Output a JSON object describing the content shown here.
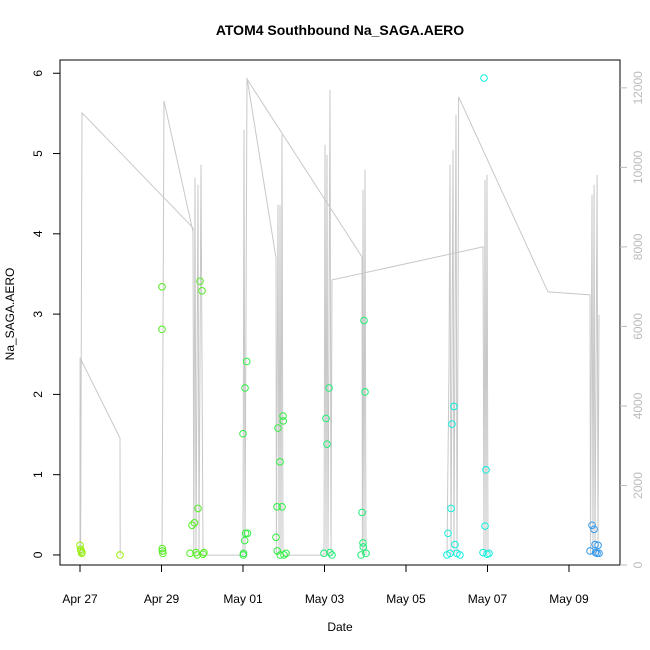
{
  "chart_data": {
    "type": "scatter",
    "title": "ATOM4 Southbound Na_SAGA.AERO",
    "x_label": "Date",
    "y_label": "Na_SAGA.AERO",
    "xlim": [
      "04-26T12:13",
      "05-10T06:03"
    ],
    "xticks": [
      {
        "value": "04-27T00:00",
        "label": "Apr 27"
      },
      {
        "value": "04-29T00:00",
        "label": "Apr 29"
      },
      {
        "value": "05-01T00:00",
        "label": "May 01"
      },
      {
        "value": "05-03T00:00",
        "label": "May 03"
      },
      {
        "value": "05-05T00:00",
        "label": "May 05"
      },
      {
        "value": "05-07T00:00",
        "label": "May 07"
      },
      {
        "value": "05-09T00:00",
        "label": "May 09"
      }
    ],
    "ylim": [
      -0.125,
      6.165
    ],
    "yticks": [
      0,
      1,
      2,
      3,
      4,
      5,
      6
    ],
    "y2lim": [
      0,
      12700
    ],
    "y2ticks": [
      0,
      2000,
      4000,
      6000,
      8000,
      10000,
      12000
    ],
    "series": [
      {
        "color": "#99ee11",
        "x": [
          "04-27T00:00",
          "04-27T00:20",
          "04-27T00:40",
          "04-27T01:00",
          "04-27T01:10",
          "04-27T23:33"
        ],
        "values": [
          0.12,
          0.07,
          0.05,
          0.02,
          0.03,
          0.0
        ]
      },
      {
        "color": "#55ee22",
        "x": [
          "04-29T00:18",
          "04-29T00:18",
          "04-29T00:25",
          "04-29T00:35",
          "04-29T00:50",
          "04-29T16:50",
          "04-29T18:00",
          "04-29T19:25",
          "04-29T20:20",
          "04-29T21:00",
          "04-29T21:30",
          "04-29T22:40",
          "04-29T23:50",
          "04-30T00:27",
          "04-30T01:00"
        ],
        "values": [
          3.34,
          2.81,
          0.08,
          0.05,
          0.02,
          0.02,
          0.37,
          0.4,
          0.03,
          0.0,
          0.58,
          3.41,
          3.29,
          0.01,
          0.03
        ]
      },
      {
        "color": "#33ee44",
        "x": [
          "05-01T00:00",
          "05-01T00:10",
          "05-01T00:20",
          "05-01T01:00",
          "05-01T01:11",
          "05-01T01:30",
          "05-01T02:10",
          "05-01T02:40",
          "05-01T19:27",
          "05-01T20:02",
          "05-01T20:10",
          "05-01T20:37",
          "05-01T21:48",
          "05-01T21:55",
          "05-01T22:59",
          "05-01T23:34",
          "05-01T23:40",
          "05-02T00:10",
          "05-02T01:20"
        ],
        "values": [
          1.51,
          0.0,
          0.02,
          0.18,
          2.08,
          0.27,
          2.41,
          0.27,
          0.22,
          0.6,
          0.05,
          1.58,
          1.16,
          0.0,
          0.6,
          1.73,
          1.67,
          0.0,
          0.02
        ]
      },
      {
        "color": "#22ee77",
        "x": [
          "05-02T23:43",
          "05-03T00:53",
          "05-03T01:29",
          "05-03T02:40",
          "05-03T03:15",
          "05-03T04:25",
          "05-03T21:35",
          "05-03T22:06",
          "05-03T22:41",
          "05-03T22:50",
          "05-03T23:16",
          "05-03T23:52",
          "05-04T00:27"
        ],
        "values": [
          0.02,
          1.7,
          1.38,
          2.08,
          0.03,
          0.0,
          0.0,
          0.53,
          0.15,
          0.1,
          2.92,
          2.03,
          0.02
        ]
      },
      {
        "color": "#11eedd",
        "x": [
          "05-06T00:10",
          "05-06T00:45",
          "05-06T01:56",
          "05-06T02:32",
          "05-06T03:05",
          "05-06T04:15",
          "05-06T04:50",
          "05-06T06:00",
          "05-06T07:45",
          "05-06T21:22",
          "05-06T21:57",
          "05-06T22:33",
          "05-06T23:08",
          "05-06T23:43",
          "05-07T00:50"
        ],
        "values": [
          0.0,
          0.27,
          0.02,
          0.58,
          1.63,
          1.85,
          0.13,
          0.02,
          0.0,
          0.03,
          5.94,
          0.36,
          1.06,
          0.01,
          0.02
        ]
      },
      {
        "color": "#3399ee",
        "x": [
          "05-09T12:24",
          "05-09T13:35",
          "05-09T14:46",
          "05-09T15:21",
          "05-09T15:40",
          "05-09T16:32",
          "05-09T17:07",
          "05-09T17:42"
        ],
        "values": [
          0.05,
          0.37,
          0.32,
          0.13,
          0.03,
          0.02,
          0.12,
          0.02
        ]
      }
    ],
    "y2_line": {
      "color": "#c8c8c8",
      "axis": "y2",
      "x": [
        "04-27T00:00",
        "04-27T00:05",
        "04-27T23:33",
        "04-27T23:40",
        null,
        "04-27T00:20",
        "04-27T01:10",
        "04-29T18:33",
        "04-29T19:00",
        "04-29T19:44",
        "04-29T20:20",
        "04-29T21:30",
        "04-29T22:05",
        "04-29T23:16",
        "04-30T00:27",
        "05-01T00:00",
        "05-01T00:35",
        "05-01T01:11",
        "05-01T02:22",
        "05-01T19:27",
        "05-01T19:40",
        "05-01T20:37",
        "05-01T21:13",
        "05-01T21:48",
        "05-01T22:23",
        "05-01T22:59",
        "05-01T23:34",
        "05-02T23:43",
        "05-03T00:18",
        "05-03T00:53",
        "05-03T01:29",
        "05-03T02:04",
        "05-03T03:15",
        "05-03T03:50",
        "05-03T04:25",
        "05-06T21:22",
        "05-06T21:57",
        "05-06T22:33",
        "05-06T23:08",
        "05-06T23:43",
        "05-07T00:19",
        null,
        "04-29T00:18",
        "04-29T01:29",
        "04-29T18:33",
        null,
        "05-01T02:40",
        "05-03T22:06",
        "05-03T22:20",
        "05-03T22:41",
        "05-03T23:16",
        "05-03T23:52",
        "05-04T00:27",
        null,
        "05-06T00:10",
        "05-06T01:21",
        "05-06T01:56",
        "05-06T02:32",
        "05-06T03:43",
        "05-06T04:18",
        "05-06T05:29",
        "05-06T06:04",
        "05-06T06:40",
        "05-06T07:00",
        "05-08T11:39",
        "05-09T12:24",
        "05-09T12:40",
        "05-09T13:35",
        "05-09T14:10",
        "05-09T14:46",
        "05-09T15:21",
        "05-09T16:32",
        "05-09T17:07",
        "05-09T17:42"
      ],
      "values": [
        250,
        5208,
        3195,
        250,
        null,
        250,
        11372,
        8479,
        250,
        9737,
        250,
        9561,
        250,
        10064,
        250,
        250,
        10945,
        250,
        12253,
        7724,
        250,
        9058,
        250,
        9058,
        250,
        10819,
        250,
        250,
        10567,
        250,
        10316,
        250,
        11951,
        250,
        7171,
        8001,
        250,
        9687,
        250,
        9812,
        250,
        null,
        250,
        11674,
        8378,
        null,
        12200,
        7749,
        250,
        9435,
        250,
        9938,
        250,
        null,
        250,
        5032,
        10064,
        250,
        10441,
        250,
        11322,
        250,
        6164,
        11775,
        6869,
        6793,
        250,
        9309,
        250,
        9561,
        250,
        9812,
        250,
        6290
      ]
    }
  }
}
